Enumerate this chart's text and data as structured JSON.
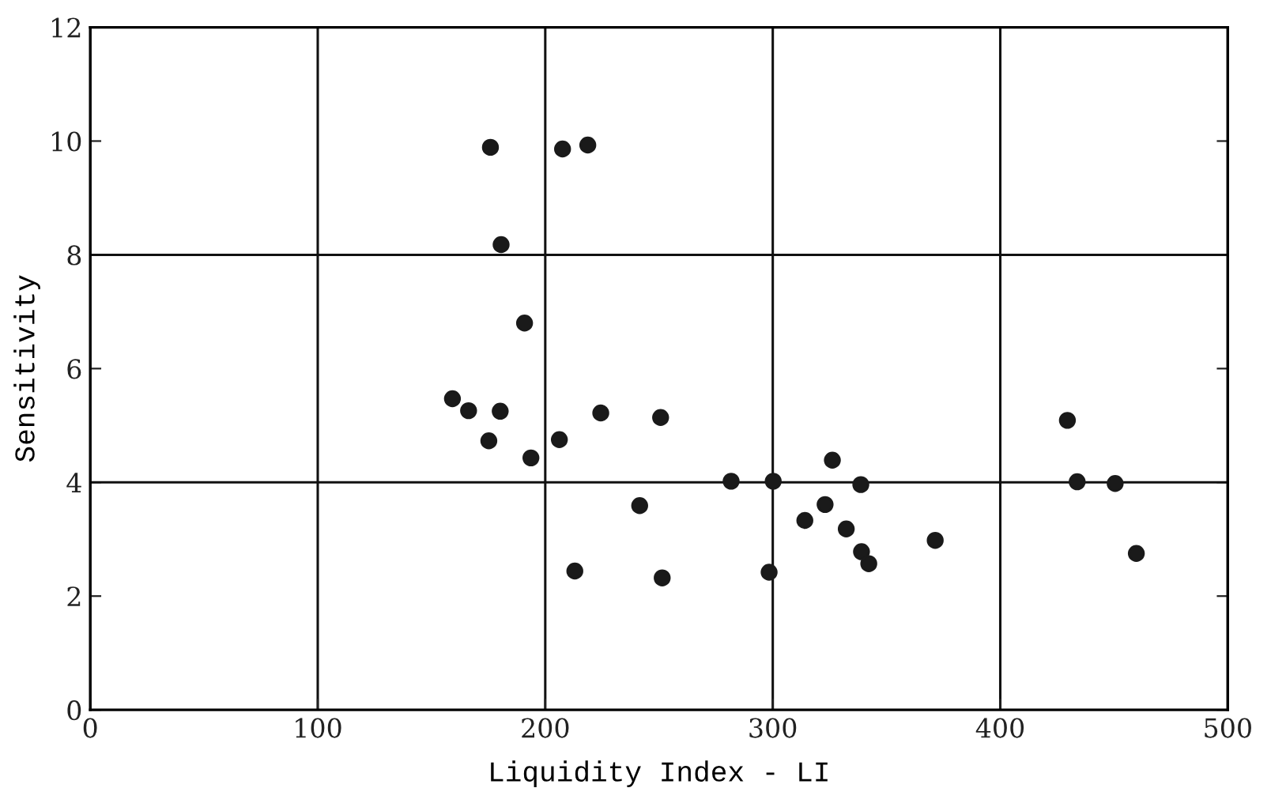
{
  "chart_data": {
    "type": "scatter",
    "xlabel": "Liquidity Index - LI",
    "ylabel": "Sensitivity",
    "x": [
      175.9,
      207.6,
      218.7,
      180.6,
      190.9,
      159.2,
      166.3,
      180.2,
      175.2,
      206.2,
      193.7,
      224.4,
      250.7,
      241.5,
      213.0,
      251.4,
      281.7,
      300.2,
      298.4,
      326.2,
      323.0,
      314.1,
      338.7,
      332.3,
      339.0,
      342.2,
      371.4,
      429.5,
      433.8,
      450.5,
      459.8
    ],
    "series": [
      {
        "color": "#1a1a1a",
        "values": [
          9.89,
          9.86,
          9.93,
          8.18,
          6.8,
          5.47,
          5.26,
          5.25,
          4.73,
          4.75,
          4.43,
          5.22,
          5.14,
          3.59,
          2.44,
          2.32,
          4.02,
          4.02,
          2.42,
          4.39,
          3.61,
          3.33,
          3.96,
          3.18,
          2.78,
          2.57,
          2.98,
          5.09,
          4.01,
          3.98,
          2.75
        ]
      }
    ],
    "xlim": [
      0,
      500
    ],
    "ylim": [
      0,
      12
    ],
    "xticks": [
      0,
      100,
      200,
      300,
      400,
      500
    ],
    "yticks": [
      0,
      2,
      4,
      6,
      8,
      10,
      12
    ],
    "grid": "x",
    "ref_lines": [
      {
        "axis": "y",
        "value": 4
      },
      {
        "axis": "y",
        "value": 8
      }
    ],
    "marker": "circle"
  }
}
